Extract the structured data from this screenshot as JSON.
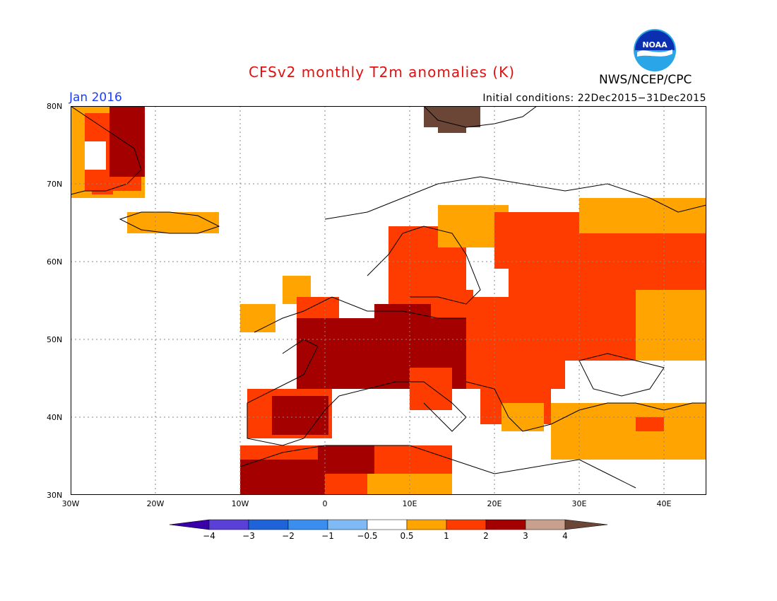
{
  "header": {
    "title": "CFSv2 monthly T2m anomalies (K)",
    "month": "Jan 2016",
    "initial_conditions": "Initial conditions: 22Dec2015−31Dec2015",
    "organization": "NWS/NCEP/CPC",
    "logo_text": "NOAA"
  },
  "map": {
    "region": "Europe",
    "extent": {
      "lon": [
        -30,
        45
      ],
      "lat": [
        30,
        80
      ]
    },
    "lat_labels": [
      "80N",
      "70N",
      "60N",
      "50N",
      "40N",
      "30N"
    ],
    "lon_labels": [
      "30W",
      "20W",
      "10W",
      "0",
      "10E",
      "20E",
      "30E",
      "40E"
    ],
    "grid": true
  },
  "legend": {
    "labels": [
      "−4",
      "−3",
      "−2",
      "−1",
      "−0.5",
      "0.5",
      "1",
      "2",
      "3",
      "4"
    ],
    "colors": [
      "#3a00a8",
      "#5a3fd8",
      "#1f63d8",
      "#3a8ef0",
      "#7fbaf5",
      "#ffffff",
      "#ffa400",
      "#ff3c00",
      "#a50000",
      "#c8a08c",
      "#6b4535"
    ]
  },
  "anomaly_regions": [
    {
      "name": "Greenland east coast",
      "level": "1 to 3"
    },
    {
      "name": "France",
      "level": "2 to 3"
    },
    {
      "name": "Iberian Peninsula",
      "level": "1 to 3"
    },
    {
      "name": "Northwest Africa",
      "level": "1 to 3"
    },
    {
      "name": "Central and Eastern Europe",
      "level": "1 to 2"
    },
    {
      "name": "Scandinavia",
      "level": "1 to 2"
    },
    {
      "name": "Western Russia",
      "level": "1 to 2"
    },
    {
      "name": "Turkey",
      "level": "0.5 to 1"
    },
    {
      "name": "Svalbard",
      "level": "3 to 4"
    }
  ]
}
